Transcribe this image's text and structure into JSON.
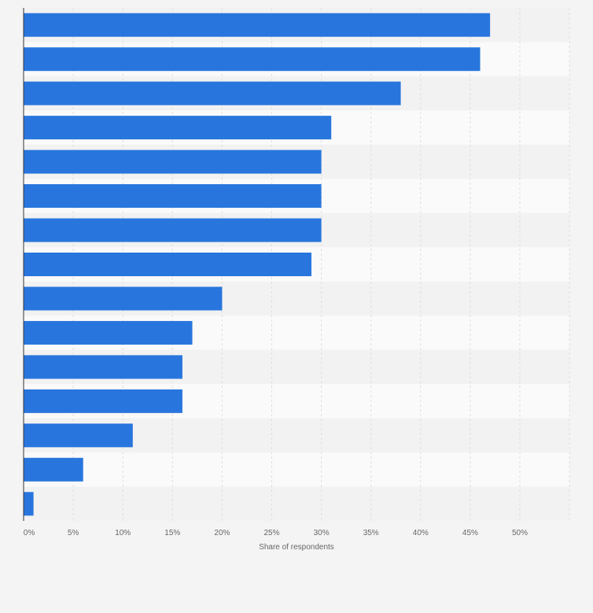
{
  "chart_data": {
    "type": "bar",
    "orientation": "horizontal",
    "title": "",
    "xlabel": "Share of respondents",
    "ylabel": "",
    "categories": [
      "",
      "",
      "",
      "",
      "",
      "",
      "",
      "",
      "",
      "",
      "",
      "",
      "",
      "",
      ""
    ],
    "values": [
      47,
      46,
      38,
      31,
      30,
      30,
      30,
      29,
      20,
      17,
      16,
      16,
      11,
      6,
      1
    ],
    "xlim": [
      0,
      55
    ],
    "xticks": [
      0,
      5,
      10,
      15,
      20,
      25,
      30,
      35,
      40,
      45,
      50
    ],
    "tick_labels": [
      "0%",
      "5%",
      "10%",
      "15%",
      "20%",
      "25%",
      "30%",
      "35%",
      "40%",
      "45%",
      "50%"
    ],
    "grid": true,
    "bar_color": "#2876dd"
  },
  "colors": {
    "background": "#f4f4f4",
    "band_light": "#fafafa",
    "band_dark": "#f2f2f2",
    "grid": "#dedede",
    "axis": "#333333"
  }
}
